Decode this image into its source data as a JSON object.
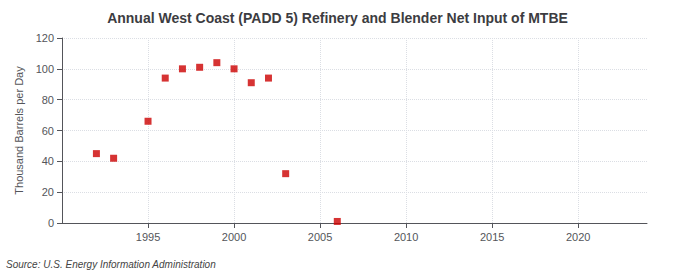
{
  "chart_data": {
    "type": "scatter",
    "title": "Annual West Coast (PADD 5) Refinery and Blender Net Input of MTBE",
    "ylabel": "Thousand Barrels per Day",
    "annotation": "Source: U.S. Energy Information Administration",
    "x": [
      1992,
      1993,
      1995,
      1996,
      1997,
      1998,
      1999,
      2000,
      2001,
      2002,
      2003,
      2006
    ],
    "values": [
      45,
      42,
      66,
      94,
      100,
      101,
      104,
      100,
      91,
      94,
      32,
      1
    ],
    "color": "#cc0000",
    "marker": "square",
    "xlim": [
      1990,
      2024
    ],
    "ylim": [
      0,
      120
    ],
    "xticks": [
      1995,
      2000,
      2005,
      2010,
      2015,
      2020
    ],
    "yticks": [
      0,
      20,
      40,
      60,
      80,
      100,
      120
    ],
    "grid": true
  }
}
